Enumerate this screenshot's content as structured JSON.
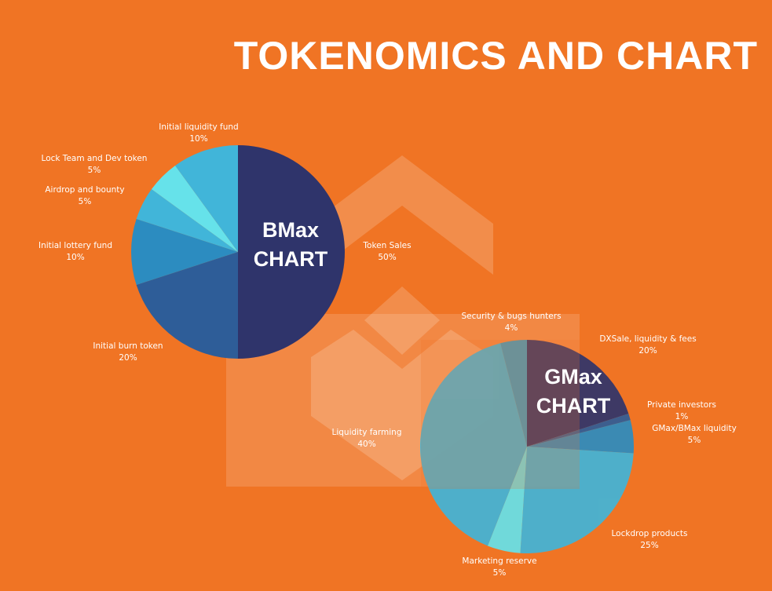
{
  "title": "TOKENOMICS AND CHART",
  "chart_data": [
    {
      "type": "pie",
      "title": "BMax CHART",
      "categories": [
        "Token Sales",
        "Initial burn token",
        "Initial lottery fund",
        "Airdrop and bounty",
        "Lock Team and Dev token",
        "Initial liquidity fund"
      ],
      "values": [
        50,
        20,
        10,
        5,
        5,
        10
      ],
      "value_labels": [
        "50%",
        "20%",
        "10%",
        "5%",
        "5%",
        "10%"
      ],
      "colors": [
        "#2f346b",
        "#2e5d98",
        "#2c8cc0",
        "#41b5d9",
        "#66e2ea",
        "#41b5d9"
      ]
    },
    {
      "type": "pie",
      "title": "GMax CHART",
      "categories": [
        "DXSale, liquidity & fees",
        "Private investors",
        "GMax/BMax liquidity",
        "Lockdrop products",
        "Marketing reserve",
        "Liquidity farming",
        "Security & bugs hunters"
      ],
      "values": [
        20,
        1,
        5,
        25,
        5,
        40,
        4
      ],
      "value_labels": [
        "20%",
        "1%",
        "5%",
        "25%",
        "5%",
        "40%",
        "4%"
      ],
      "colors": [
        "#2f346b",
        "#2e5d98",
        "#2c8cc0",
        "#41b5d9",
        "#66e2ea",
        "#41b5d9",
        "#3a9cc2"
      ]
    }
  ]
}
